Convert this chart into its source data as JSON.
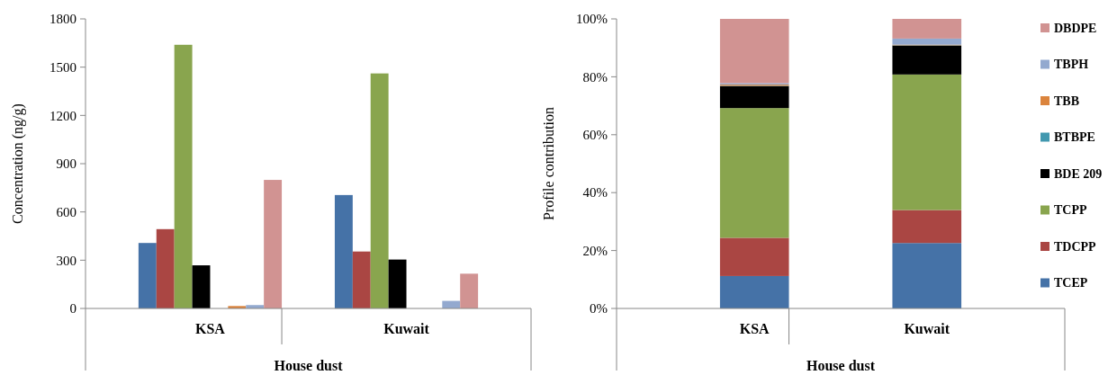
{
  "chart_data": [
    {
      "type": "bar",
      "ylabel": "Concentration (ng/g)",
      "xlabel": "House dust",
      "categories": [
        "KSA",
        "Kuwait"
      ],
      "ylim": [
        0,
        1800
      ],
      "yticks": [
        0,
        300,
        600,
        900,
        1200,
        1500,
        1800
      ],
      "series": [
        {
          "color": "#4572a7",
          "values": [
            407,
            705
          ]
        },
        {
          "color": "#aa4643",
          "values": [
            493,
            354
          ]
        },
        {
          "color": "#89a54e",
          "values": [
            1639,
            1461
          ]
        },
        {
          "color": "#000000",
          "values": [
            268,
            304
          ]
        },
        {
          "values": [
            null,
            null
          ]
        },
        {
          "color": "#db843d",
          "values": [
            15,
            null
          ]
        },
        {
          "color": "#93a9cf",
          "values": [
            21,
            47
          ]
        },
        {
          "color": "#d19392",
          "values": [
            799,
            216
          ]
        }
      ]
    },
    {
      "type": "bar",
      "stacked": true,
      "ylabel": "Profile contribution",
      "xlabel": "House dust",
      "categories": [
        "KSA",
        "Kuwait"
      ],
      "legend": "right",
      "ylim": [
        0,
        100
      ],
      "yticks": [
        {
          "value": 0,
          "label": "0%"
        },
        {
          "value": 20,
          "label": "20%"
        },
        {
          "value": 40,
          "label": "40%"
        },
        {
          "value": 60,
          "label": "60%"
        },
        {
          "value": 80,
          "label": "80%"
        },
        {
          "value": 100,
          "label": "100%"
        }
      ],
      "series": [
        {
          "name": "TCEP",
          "color": "#4572a7",
          "values": [
            11.2,
            22.6
          ]
        },
        {
          "name": "TDCPP",
          "color": "#aa4643",
          "values": [
            13.2,
            11.4
          ]
        },
        {
          "name": "TCPP",
          "color": "#89a54e",
          "values": [
            44.8,
            46.8
          ]
        },
        {
          "name": "BDE 209",
          "color": "#000000",
          "values": [
            7.6,
            10.0
          ]
        },
        {
          "name": "BTBPE",
          "color": "#4198af",
          "values": [
            0.1,
            0.1
          ]
        },
        {
          "name": "TBB",
          "color": "#db843d",
          "values": [
            0.4,
            0.2
          ]
        },
        {
          "name": "TBPH",
          "color": "#93a9cf",
          "values": [
            0.5,
            2.1
          ]
        },
        {
          "name": "DBDPE",
          "color": "#d19392",
          "values": [
            22.2,
            6.8
          ]
        }
      ]
    }
  ]
}
